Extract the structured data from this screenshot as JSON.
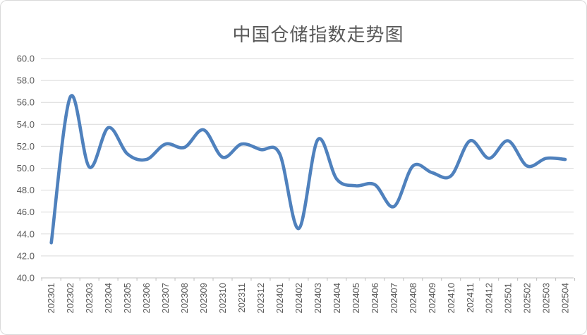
{
  "chart": {
    "title": "中国仓储指数走势图"
  },
  "chart_data": {
    "type": "line",
    "title": "中国仓储指数走势图",
    "xlabel": "",
    "ylabel": "",
    "categories": [
      "202301",
      "202302",
      "202303",
      "202304",
      "202305",
      "202306",
      "202307",
      "202308",
      "202309",
      "202310",
      "202311",
      "202312",
      "202401",
      "202402",
      "202403",
      "202404",
      "202405",
      "202406",
      "202407",
      "202408",
      "202409",
      "202410",
      "202411",
      "202412",
      "202501",
      "202502",
      "202503",
      "202504"
    ],
    "values": [
      43.2,
      56.5,
      50.1,
      53.7,
      51.3,
      50.8,
      52.2,
      51.9,
      53.5,
      51.0,
      52.2,
      51.7,
      51.3,
      44.5,
      52.6,
      49.0,
      48.4,
      48.5,
      46.5,
      50.2,
      49.6,
      49.3,
      52.5,
      50.9,
      52.5,
      50.2,
      50.9,
      50.8
    ],
    "ylim": [
      40.0,
      60.0
    ],
    "ytick_step": 2.0,
    "y_tick_labels": [
      "60.0",
      "58.0",
      "56.0",
      "54.0",
      "52.0",
      "50.0",
      "48.0",
      "46.0",
      "44.0",
      "42.0",
      "40.0"
    ],
    "grid": true,
    "legend": "none",
    "smooth": true,
    "line_color": "#4F81BD",
    "grid_color": "#d9d9d9",
    "axis_color": "#bfbfbf",
    "label_color": "#595959",
    "title_color": "#595959"
  }
}
